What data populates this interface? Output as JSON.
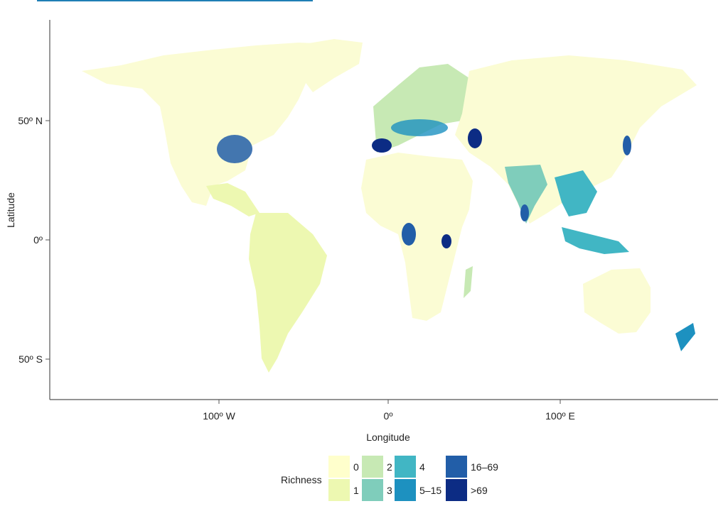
{
  "axes": {
    "ylabel": "Latitude",
    "xlabel": "Longitude",
    "yticks": [
      "50º N",
      "0º",
      "50º S"
    ],
    "xticks": [
      "100º W",
      "0º",
      "100º E"
    ]
  },
  "legend": {
    "title": "Richness",
    "items": [
      {
        "label": "0",
        "color": "#ffffcc"
      },
      {
        "label": "1",
        "color": "#edf8b1"
      },
      {
        "label": "2",
        "color": "#c7e9b4"
      },
      {
        "label": "3",
        "color": "#7fcdbb"
      },
      {
        "label": "4",
        "color": "#41b6c4"
      },
      {
        "label": "5–15",
        "color": "#1d91c0"
      },
      {
        "label": "16–69",
        "color": "#225ea8"
      },
      {
        "label": ">69",
        "color": "#0c2c84"
      }
    ]
  },
  "colors": {
    "land": "#fbfcd4",
    "axis": "#555555",
    "link": "#1f7fb5"
  }
}
